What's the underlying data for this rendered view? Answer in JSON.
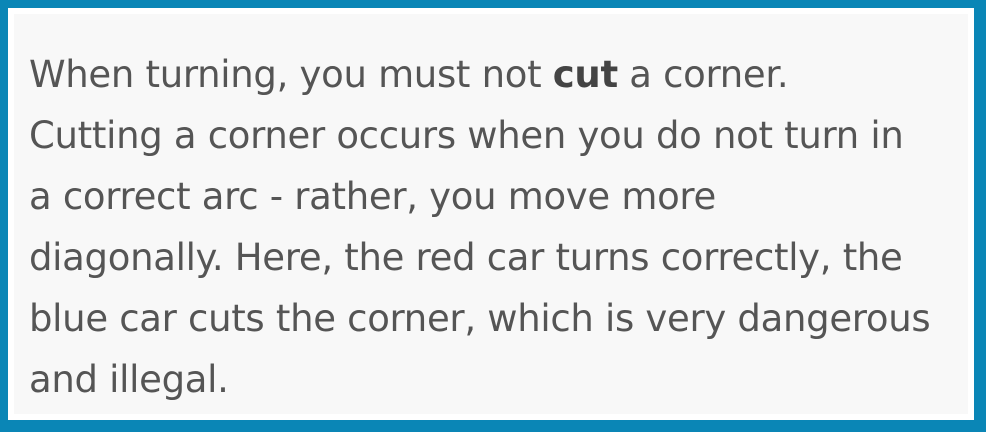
{
  "card": {
    "line1_before": "When turning, you must not ",
    "line1_bold": "cut",
    "line1_after": " a corner.",
    "line2": "Cutting a corner occurs when you do not turn in",
    "line3": "a correct arc - rather, you move more",
    "line4": "diagonally. Here, the red car turns correctly, the",
    "line5": "blue car cuts the corner, which is very dangerous",
    "line6": "and illegal."
  },
  "colors": {
    "border": "#0a86b6",
    "inner_border": "#ffffff",
    "background": "#f8f8f8",
    "text": "#555555"
  }
}
